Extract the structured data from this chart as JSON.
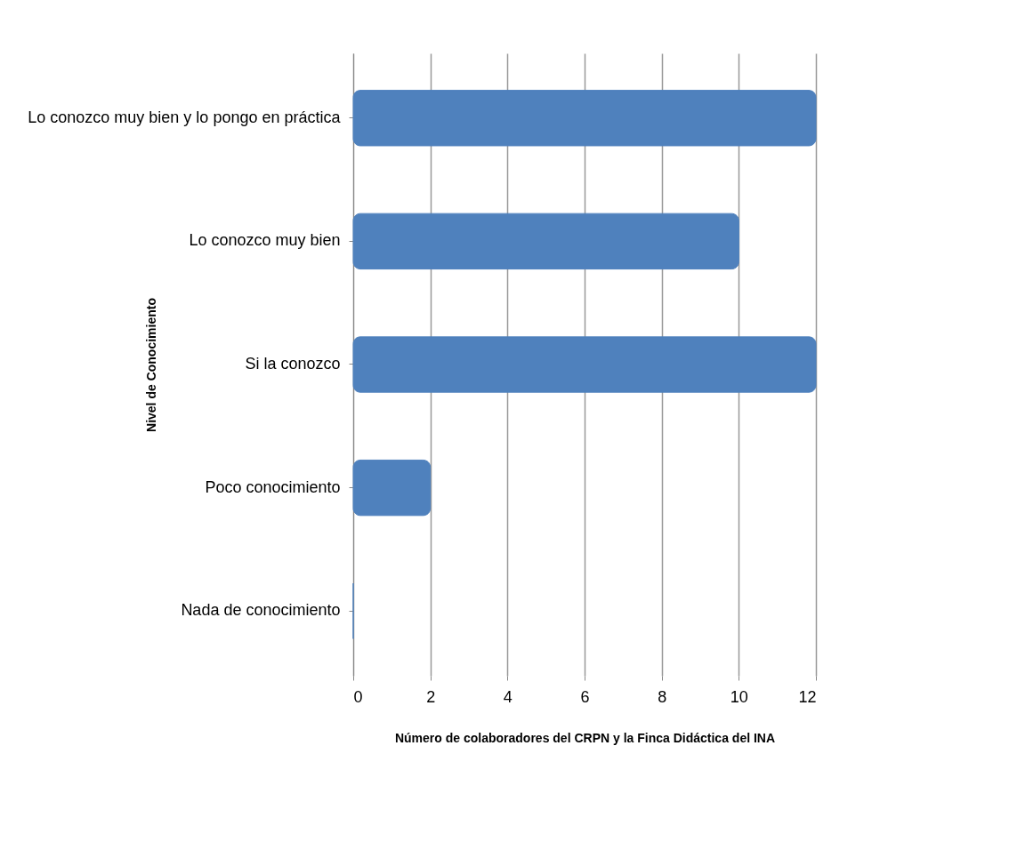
{
  "chart_data": {
    "type": "bar",
    "orientation": "horizontal",
    "categories": [
      "Lo conozco muy bien y lo pongo en práctica",
      "Lo conozco muy bien",
      "Si la conozco",
      "Poco conocimiento",
      "Nada de conocimiento"
    ],
    "values": [
      12,
      10,
      12,
      2,
      0
    ],
    "color": "#4f81bd",
    "xlim": [
      0,
      12
    ],
    "xticks": [
      0,
      2,
      4,
      6,
      8,
      10,
      12
    ],
    "xlabel": "Número de colaboradores del CRPN y la Finca Didáctica del INA",
    "ylabel": "Nivel de Conocimiento",
    "grid": "x"
  }
}
